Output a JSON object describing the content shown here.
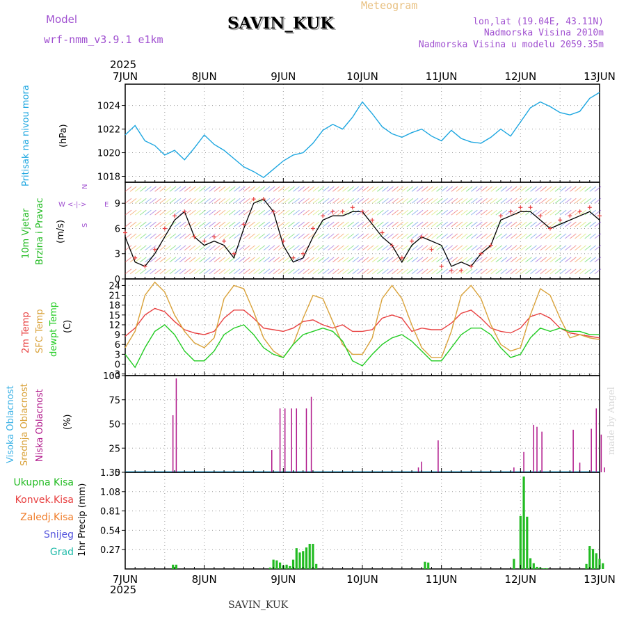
{
  "header": {
    "model_label": "Model",
    "model_name": "wrf-nmm_v3.9.1 e1km",
    "station": "SAVIN_KUK",
    "chart_type": "Meteogram",
    "coords": "lon,lat (19.04E, 43.11N)",
    "altitude": "Nadmorska Visina 2010m",
    "model_altitude": "Nadmorska Visina u modelu 2059.35m",
    "footer_station": "SAVIN_KUK",
    "credit": "made by Angel"
  },
  "colors": {
    "pressure": "#1ca6e0",
    "temp_2m": "#e84040",
    "temp_sfc": "#d9a23a",
    "dewpt": "#22cc22",
    "cloud_high": "#3fb3e6",
    "cloud_mid": "#d9a23a",
    "cloud_low": "#b0178a",
    "rain_total": "#22bb22",
    "rain_conv": "#e84040",
    "rain_frozen": "#f07d2a",
    "snow": "#5555dd",
    "hail": "#22bbaa",
    "wind_speed": "#000000",
    "wind_gust": "#e84040",
    "model_label": "#a050d0",
    "chart_type": "#e8c080"
  },
  "chart_data": {
    "type": "line",
    "time_axis": {
      "start": "2025-06-07T00:00",
      "end": "2025-06-13T00:00",
      "top_year": "2025",
      "bottom_year": "2025",
      "tick_labels": [
        "7JUN",
        "8JUN",
        "9JUN",
        "10JUN",
        "11JUN",
        "12JUN",
        "13JUN"
      ]
    },
    "panels": [
      {
        "id": "pressure",
        "labels": [
          "Pritisak na nivou mora"
        ],
        "unit": "(hPa)",
        "yticks": [
          1018,
          1020,
          1022,
          1024
        ],
        "ylim": [
          1017.5,
          1025.8
        ],
        "series": [
          {
            "name": "Pritisak na nivou mora",
            "hours": [
              0,
              3,
              6,
              9,
              12,
              15,
              18,
              21,
              24,
              27,
              30,
              33,
              36,
              39,
              42,
              45,
              48,
              51,
              54,
              57,
              60,
              63,
              66,
              69,
              72,
              75,
              78,
              81,
              84,
              87,
              90,
              93,
              96,
              99,
              102,
              105,
              108,
              111,
              114,
              117,
              120,
              123,
              126,
              129,
              132,
              135,
              138,
              141,
              144
            ],
            "values": [
              1021.5,
              1022.3,
              1021.0,
              1020.6,
              1019.8,
              1020.2,
              1019.4,
              1020.4,
              1021.5,
              1020.7,
              1020.2,
              1019.5,
              1018.8,
              1018.4,
              1017.9,
              1018.6,
              1019.3,
              1019.8,
              1020.0,
              1020.8,
              1021.9,
              1022.4,
              1022.0,
              1023.0,
              1024.3,
              1023.3,
              1022.2,
              1021.6,
              1021.3,
              1021.7,
              1022.0,
              1021.4,
              1021.0,
              1021.9,
              1021.2,
              1020.9,
              1020.8,
              1021.3,
              1022.0,
              1021.4,
              1022.6,
              1023.8,
              1024.3,
              1023.9,
              1023.4,
              1023.2,
              1023.5,
              1024.6,
              1025.1
            ]
          }
        ]
      },
      {
        "id": "wind",
        "labels": [
          "10m Vjetar",
          "Brzina i Pravac"
        ],
        "unit": "(m/s)",
        "compass": {
          "n": "N",
          "s": "S",
          "w": "W",
          "e": "E"
        },
        "yticks": [
          0,
          3,
          6,
          9
        ],
        "ylim": [
          0,
          11.5
        ],
        "series": [
          {
            "name": "10m Vjetar",
            "hours": [
              0,
              3,
              6,
              9,
              12,
              15,
              18,
              21,
              24,
              27,
              30,
              33,
              36,
              39,
              42,
              45,
              48,
              51,
              54,
              57,
              60,
              63,
              66,
              69,
              72,
              75,
              78,
              81,
              84,
              87,
              90,
              93,
              96,
              99,
              102,
              105,
              108,
              111,
              114,
              117,
              120,
              123,
              126,
              129,
              132,
              135,
              138,
              141,
              144
            ],
            "values": [
              5,
              2,
              1.5,
              3,
              5,
              7,
              8,
              5,
              4,
              4.5,
              4,
              2.5,
              6,
              9,
              9.5,
              8,
              4,
              2,
              2.5,
              5,
              7,
              7.5,
              7.5,
              8,
              8,
              6.5,
              5,
              4,
              2,
              4,
              5,
              4.5,
              4,
              1.5,
              2,
              1.5,
              3,
              4,
              7,
              7.5,
              8,
              8,
              7,
              6,
              6.5,
              7,
              7.5,
              8,
              7
            ]
          },
          {
            "name": "gust",
            "hours": [
              0,
              3,
              6,
              9,
              12,
              15,
              18,
              21,
              24,
              27,
              30,
              33,
              36,
              39,
              42,
              45,
              48,
              51,
              54,
              57,
              60,
              63,
              66,
              69,
              72,
              75,
              78,
              81,
              84,
              87,
              90,
              93,
              96,
              99,
              102,
              105,
              108,
              111,
              114,
              117,
              120,
              123,
              126,
              129,
              132,
              135,
              138,
              141,
              144
            ],
            "values": [
              5.5,
              2.5,
              1.5,
              3.5,
              6,
              7.5,
              8,
              5,
              4.5,
              5,
              4.5,
              3,
              6.5,
              9.5,
              9.5,
              8,
              4.5,
              2.5,
              3,
              6,
              7.5,
              8,
              8,
              8.5,
              8,
              7,
              5.5,
              4,
              2.5,
              4.5,
              5,
              3.5,
              1.5,
              1,
              1,
              1.5,
              3,
              4,
              7.5,
              8,
              8.5,
              8.5,
              7.5,
              6,
              7,
              7.5,
              8,
              8.5,
              7.5
            ]
          }
        ]
      },
      {
        "id": "temperature",
        "labels": [
          "2m Temp",
          "SFC Temp",
          "dewpt Temp"
        ],
        "unit": "(C)",
        "yticks": [
          -3,
          0,
          3,
          6,
          9,
          12,
          15,
          18,
          21,
          24
        ],
        "ylim": [
          -3.5,
          26
        ],
        "series": [
          {
            "name": "2m Temp",
            "hours": [
              0,
              3,
              6,
              9,
              12,
              15,
              18,
              21,
              24,
              27,
              30,
              33,
              36,
              39,
              42,
              45,
              48,
              51,
              54,
              57,
              60,
              63,
              66,
              69,
              72,
              75,
              78,
              81,
              84,
              87,
              90,
              93,
              96,
              99,
              102,
              105,
              108,
              111,
              114,
              117,
              120,
              123,
              126,
              129,
              132,
              135,
              138,
              141,
              144
            ],
            "values": [
              8.5,
              11,
              15,
              17,
              16,
              13,
              10.5,
              9.5,
              9,
              10,
              14,
              16.5,
              16.5,
              14,
              11,
              10.5,
              10,
              11,
              13,
              13.5,
              12,
              11,
              12,
              10,
              10,
              10.5,
              14,
              15,
              14,
              10,
              11,
              10.5,
              10.5,
              12.5,
              15.5,
              16.5,
              14,
              11,
              10,
              9.5,
              11,
              14.5,
              15.5,
              14,
              11,
              9.5,
              9,
              8.5,
              8
            ]
          },
          {
            "name": "SFC Temp",
            "hours": [
              0,
              3,
              6,
              9,
              12,
              15,
              18,
              21,
              24,
              27,
              30,
              33,
              36,
              39,
              42,
              45,
              48,
              51,
              54,
              57,
              60,
              63,
              66,
              69,
              72,
              75,
              78,
              81,
              84,
              87,
              90,
              93,
              96,
              99,
              102,
              105,
              108,
              111,
              114,
              117,
              120,
              123,
              126,
              129,
              132,
              135,
              138,
              141,
              144
            ],
            "values": [
              5,
              10,
              21,
              25,
              22,
              15,
              10,
              6.5,
              5,
              8,
              20,
              24,
              23,
              16,
              8,
              4,
              2,
              6,
              14,
              21,
              20,
              13,
              6,
              3,
              3,
              8,
              20,
              24,
              20,
              12,
              5,
              2,
              2,
              10,
              21,
              24,
              20,
              12,
              6,
              4,
              5,
              15,
              23,
              21,
              14,
              8,
              9,
              8,
              7.5
            ]
          },
          {
            "name": "dewpt Temp",
            "hours": [
              0,
              3,
              6,
              9,
              12,
              15,
              18,
              21,
              24,
              27,
              30,
              33,
              36,
              39,
              42,
              45,
              48,
              51,
              54,
              57,
              60,
              63,
              66,
              69,
              72,
              75,
              78,
              81,
              84,
              87,
              90,
              93,
              96,
              99,
              102,
              105,
              108,
              111,
              114,
              117,
              120,
              123,
              126,
              129,
              132,
              135,
              138,
              141,
              144
            ],
            "values": [
              3,
              -1,
              5,
              10,
              12,
              9,
              4,
              1,
              1,
              4,
              9,
              11,
              12,
              9,
              5,
              3,
              2,
              6,
              9,
              10,
              11,
              10,
              7,
              1,
              -0.5,
              3,
              6,
              8,
              9,
              7,
              4,
              1,
              1,
              5,
              9,
              11,
              11,
              9,
              5,
              2,
              3,
              8,
              11,
              10,
              11,
              10,
              10,
              9,
              9
            ]
          }
        ]
      },
      {
        "id": "cloud",
        "labels": [
          "Visoka Oblacnost",
          "Srednja Oblacnost",
          "Niska Oblacnost"
        ],
        "unit": "(%)",
        "yticks": [
          0,
          25,
          50,
          75,
          100
        ],
        "ylim": [
          0,
          100
        ],
        "series": [
          {
            "name": "Niska Oblacnost",
            "hours": [
              14.5,
              15.5,
              44.5,
              47,
              48.5,
              50.5,
              52,
              55,
              56.5,
              89,
              90,
              95,
              118,
              121,
              124,
              125,
              126.5,
              136,
              138,
              141.5,
              143,
              144.5,
              145.5
            ],
            "values": [
              59,
              97,
              23,
              66,
              66,
              66,
              66,
              66,
              78,
              5,
              11,
              33,
              5,
              21,
              49,
              47,
              42,
              44,
              10,
              45,
              66,
              39,
              5
            ]
          }
        ]
      },
      {
        "id": "precip",
        "labels": [
          "Ukupna Kisa",
          "Konvek.Kisa",
          "Zaledj.Kisa",
          "Snijeg",
          "Grad"
        ],
        "unit": "1hr Precip (mm)",
        "yticks": [
          0.27,
          0.54,
          0.81,
          1.08,
          1.35
        ],
        "ylim": [
          0,
          1.35
        ],
        "series": [
          {
            "name": "Ukupna Kisa",
            "hours": [
              14.5,
              15.5,
              44,
              45,
              46,
              47,
              48,
              49,
              50,
              51,
              52,
              53,
              54,
              55,
              56,
              57,
              58,
              91,
              92,
              118,
              120,
              121,
              122,
              123,
              124,
              125,
              126,
              127,
              128,
              140,
              141,
              142,
              143,
              144,
              145
            ],
            "values": [
              0.06,
              0.06,
              0.02,
              0.13,
              0.12,
              0.09,
              0.05,
              0.06,
              0.04,
              0.13,
              0.29,
              0.23,
              0.25,
              0.3,
              0.35,
              0.35,
              0.07,
              0.1,
              0.09,
              0.14,
              0.74,
              1.29,
              0.73,
              0.15,
              0.08,
              0.03,
              0.02,
              0.01,
              0.01,
              0.07,
              0.32,
              0.28,
              0.22,
              0.14,
              0.08
            ]
          }
        ]
      }
    ]
  }
}
